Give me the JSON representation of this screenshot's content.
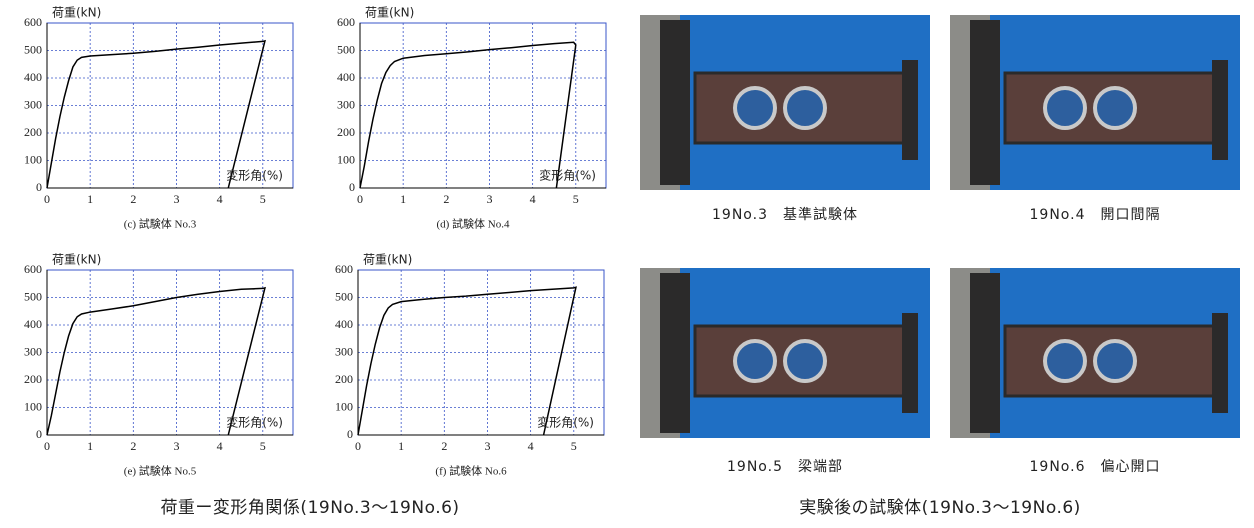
{
  "chart_data": [
    {
      "type": "line",
      "caption": "(c)  試験体 No.3",
      "ylabel": "荷重(kN)",
      "xlabel": "変形角(%)",
      "x": [
        0,
        0.1,
        0.2,
        0.3,
        0.4,
        0.5,
        0.6,
        0.7,
        0.8,
        1,
        1.5,
        2,
        2.5,
        3,
        3.5,
        4,
        4.5,
        5,
        5.05,
        4.2
      ],
      "values": [
        0,
        90,
        180,
        260,
        330,
        390,
        440,
        465,
        475,
        480,
        485,
        490,
        497,
        505,
        512,
        520,
        527,
        533,
        535,
        0
      ],
      "color": "#000000",
      "xlim": [
        0,
        5.7
      ],
      "ylim": [
        0,
        600
      ],
      "xticks": [
        0,
        1,
        2,
        3,
        4,
        5
      ],
      "yticks": [
        0,
        100,
        200,
        300,
        400,
        500,
        600
      ],
      "grid": true
    },
    {
      "type": "line",
      "caption": "(d)  試験体 No.4",
      "ylabel": "荷重(kN)",
      "xlabel": "変形角(%)",
      "x": [
        0,
        0.1,
        0.2,
        0.3,
        0.4,
        0.5,
        0.6,
        0.7,
        0.8,
        1,
        1.5,
        2,
        2.5,
        3,
        3.5,
        4,
        4.5,
        4.95,
        5,
        4.55
      ],
      "values": [
        0,
        80,
        170,
        250,
        320,
        380,
        420,
        445,
        460,
        472,
        482,
        488,
        495,
        503,
        510,
        518,
        525,
        530,
        520,
        0
      ],
      "color": "#000000",
      "xlim": [
        0,
        5.7
      ],
      "ylim": [
        0,
        600
      ],
      "xticks": [
        0,
        1,
        2,
        3,
        4,
        5
      ],
      "yticks": [
        0,
        100,
        200,
        300,
        400,
        500,
        600
      ],
      "grid": true
    },
    {
      "type": "line",
      "caption": "(e)  試験体 No.5",
      "ylabel": "荷重(kN)",
      "xlabel": "変形角(%)",
      "x": [
        0,
        0.1,
        0.2,
        0.3,
        0.4,
        0.5,
        0.6,
        0.7,
        0.8,
        1,
        1.5,
        2,
        2.5,
        3,
        3.5,
        4,
        4.5,
        5,
        5.05,
        4.2
      ],
      "values": [
        0,
        70,
        150,
        230,
        300,
        360,
        405,
        430,
        440,
        447,
        458,
        470,
        485,
        500,
        512,
        522,
        530,
        533,
        535,
        0
      ],
      "color": "#000000",
      "xlim": [
        0,
        5.7
      ],
      "ylim": [
        0,
        600
      ],
      "xticks": [
        0,
        1,
        2,
        3,
        4,
        5
      ],
      "yticks": [
        0,
        100,
        200,
        300,
        400,
        500,
        600
      ],
      "grid": true
    },
    {
      "type": "line",
      "caption": "(f)  試験体 No.6",
      "ylabel": "荷重(kN)",
      "xlabel": "変形角(%)",
      "x": [
        0,
        0.1,
        0.2,
        0.3,
        0.4,
        0.5,
        0.6,
        0.7,
        0.8,
        1,
        1.5,
        2,
        2.5,
        3,
        3.5,
        4,
        4.5,
        5,
        5.05,
        4.3
      ],
      "values": [
        0,
        90,
        180,
        260,
        330,
        390,
        435,
        462,
        475,
        485,
        493,
        500,
        505,
        512,
        518,
        525,
        530,
        535,
        537,
        0
      ],
      "color": "#000000",
      "xlim": [
        0,
        5.7
      ],
      "ylim": [
        0,
        600
      ],
      "xticks": [
        0,
        1,
        2,
        3,
        4,
        5
      ],
      "yticks": [
        0,
        100,
        200,
        300,
        400,
        500,
        600
      ],
      "grid": true
    }
  ],
  "photos": [
    {
      "caption": "19No.3　基準試験体"
    },
    {
      "caption": "19No.4　開口間隔"
    },
    {
      "caption": "19No.5　梁端部"
    },
    {
      "caption": "19No.6　偏心開口"
    }
  ],
  "captions": {
    "left": "荷重ー変形角関係(19No.3〜19No.6)",
    "right": "実験後の試験体(19No.3〜19No.6)"
  }
}
